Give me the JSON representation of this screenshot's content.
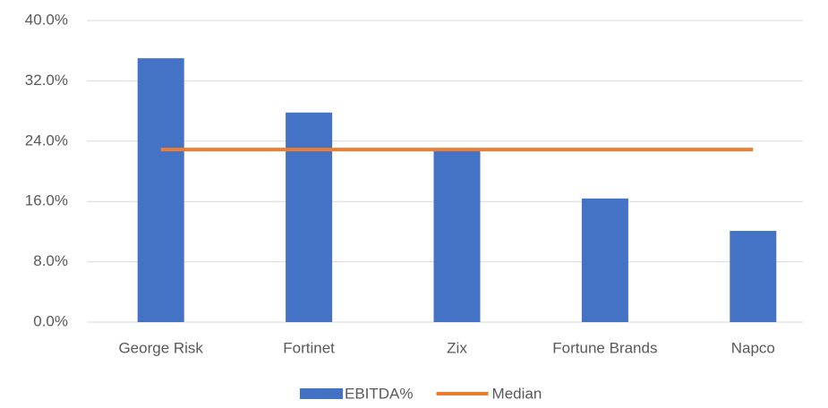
{
  "chart_data": {
    "type": "bar",
    "categories": [
      "George Risk",
      "Fortinet",
      "Zix",
      "Fortune Brands",
      "Napco"
    ],
    "series": [
      {
        "name": "EBITDA%",
        "type": "bar",
        "color": "#4472C4",
        "values": [
          35.0,
          27.8,
          22.7,
          16.4,
          12.1
        ]
      },
      {
        "name": "Median",
        "type": "line",
        "color": "#ED7D31",
        "values": [
          22.9,
          22.9,
          22.9,
          22.9,
          22.9
        ]
      }
    ],
    "ylim": [
      0,
      40
    ],
    "yticks": [
      {
        "value": 0,
        "label": "0.0%"
      },
      {
        "value": 8,
        "label": "8.0%"
      },
      {
        "value": 16,
        "label": "16.0%"
      },
      {
        "value": 24,
        "label": "24.0%"
      },
      {
        "value": 32,
        "label": "32.0%"
      },
      {
        "value": 40,
        "label": "40.0%"
      }
    ],
    "grid": true,
    "legend": "bottom"
  }
}
